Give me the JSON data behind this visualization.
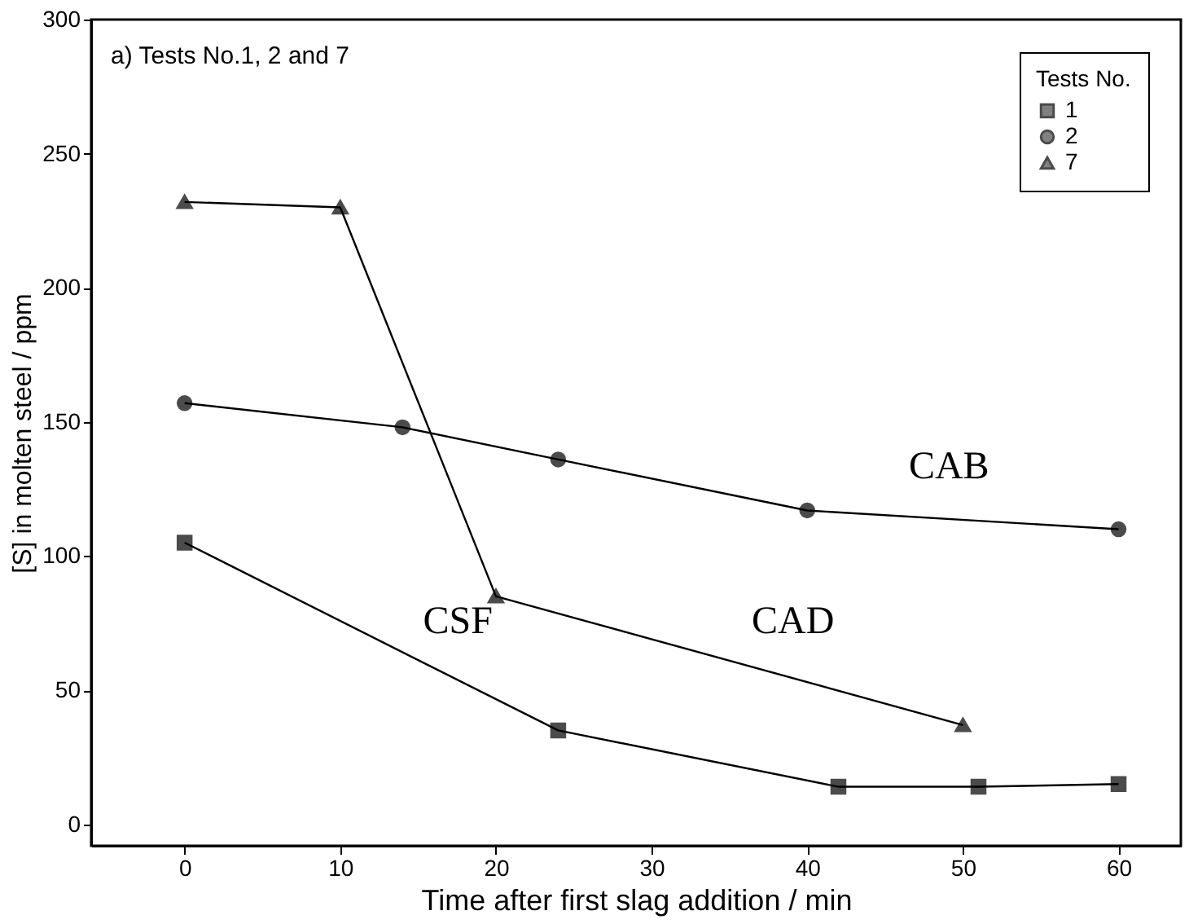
{
  "chart_data": {
    "type": "line",
    "title": "a) Tests No.1, 2 and 7",
    "xlabel": "Time after first slag addition / min",
    "ylabel": "[S] in molten steel / ppm",
    "legend_title": "Tests No.",
    "legend": "top right",
    "grid": false,
    "line_style": "solid",
    "xlim": [
      -6,
      64
    ],
    "ylim": [
      -8,
      300
    ],
    "xticks": [
      0,
      10,
      20,
      30,
      40,
      50,
      60
    ],
    "yticks": [
      0,
      50,
      100,
      150,
      200,
      250,
      300
    ],
    "series": [
      {
        "name": "1",
        "color": "#000000",
        "marker": "square",
        "x": [
          0,
          24,
          42,
          51,
          60
        ],
        "values": [
          105,
          35,
          14,
          14,
          15
        ]
      },
      {
        "name": "2",
        "color": "#000000",
        "marker": "circle",
        "x": [
          0,
          14,
          24,
          40,
          60
        ],
        "values": [
          157,
          148,
          136,
          117,
          110
        ]
      },
      {
        "name": "7",
        "color": "#000000",
        "marker": "triangle",
        "x": [
          0,
          10,
          20,
          50
        ],
        "values": [
          232,
          230,
          85,
          37
        ]
      }
    ],
    "annotations": [
      "CSF",
      "CAD",
      "CAB"
    ]
  }
}
